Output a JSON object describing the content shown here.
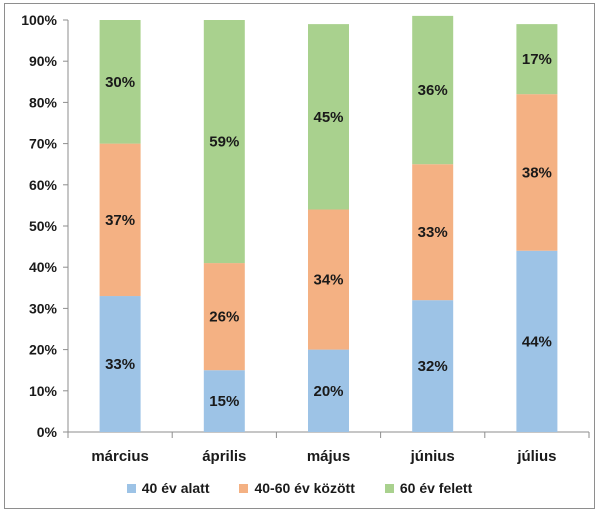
{
  "chart_data": {
    "type": "bar",
    "stacked": true,
    "categories": [
      "március",
      "április",
      "május",
      "június",
      "július"
    ],
    "series": [
      {
        "name": "40 év alatt",
        "color": "#9dc3e6",
        "values": [
          33,
          15,
          20,
          32,
          44
        ]
      },
      {
        "name": "40-60 év között",
        "color": "#f4b183",
        "values": [
          37,
          26,
          34,
          33,
          38
        ]
      },
      {
        "name": "60 év felett",
        "color": "#a9d18e",
        "values": [
          30,
          59,
          45,
          36,
          17
        ]
      }
    ],
    "ylim": [
      0,
      100
    ],
    "yticks": [
      "0%",
      "10%",
      "20%",
      "30%",
      "40%",
      "50%",
      "60%",
      "70%",
      "80%",
      "90%",
      "100%"
    ],
    "grid": false,
    "legend_position": "bottom"
  }
}
